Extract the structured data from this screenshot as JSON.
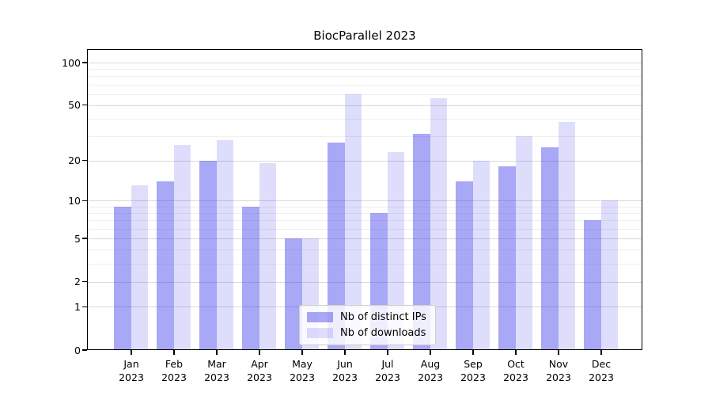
{
  "chart_data": {
    "type": "bar",
    "title": "BiocParallel 2023",
    "xlabel": "",
    "ylabel": "",
    "scale": "log1p",
    "ylim": [
      0,
      125
    ],
    "grid": true,
    "legend_position": "inside-bottom-center",
    "months": [
      "Jan",
      "Feb",
      "Mar",
      "Apr",
      "May",
      "Jun",
      "Jul",
      "Aug",
      "Sep",
      "Oct",
      "Nov",
      "Dec"
    ],
    "year": "2023",
    "series": [
      {
        "name": "Nb of distinct IPs",
        "color": "rgba(62,62,235,0.45)",
        "values": [
          9,
          14,
          20,
          9,
          5,
          27,
          8,
          31,
          14,
          18,
          25,
          7
        ]
      },
      {
        "name": "Nb of downloads",
        "color": "rgba(62,62,235,0.17)",
        "values": [
          13,
          26,
          28,
          19,
          5,
          60,
          23,
          56,
          20,
          30,
          38,
          10
        ]
      }
    ],
    "y_major_ticks": [
      100,
      50,
      20,
      10,
      5,
      2,
      1,
      0
    ],
    "y_minor_ticks": [
      3,
      4,
      6,
      7,
      8,
      9,
      30,
      40,
      60,
      70,
      80,
      90
    ],
    "colors": {
      "ips_rendered": "#a6a6f4",
      "downloads_rendered": "#dcdcfa",
      "major_grid": "#d9d9d9",
      "minor_grid": "#efefef",
      "spine": "#000000"
    }
  }
}
